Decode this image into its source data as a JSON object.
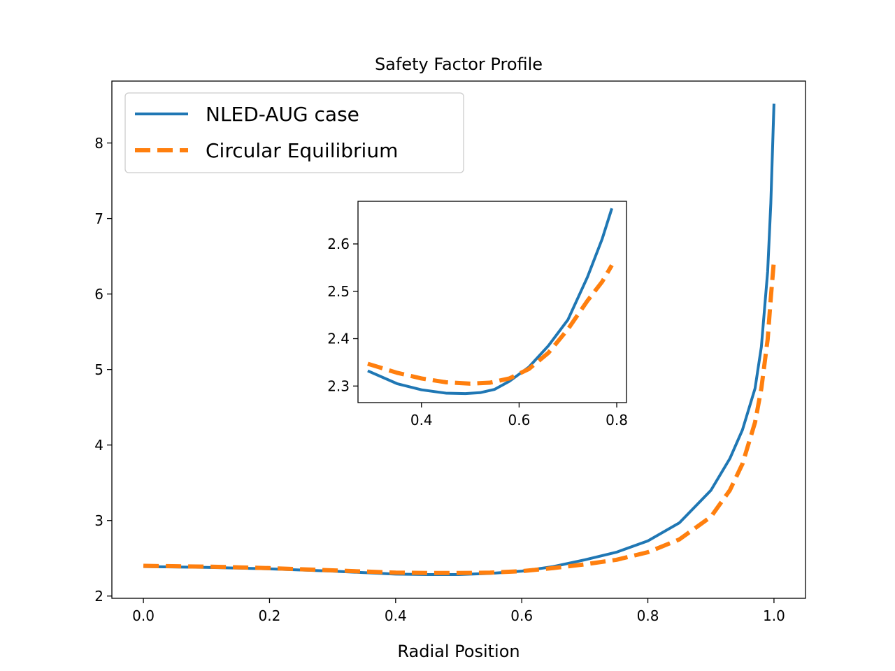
{
  "chart_data": [
    {
      "type": "line",
      "title": "Safety Factor Profile",
      "xlabel": "Radial Position",
      "ylabel": "",
      "xlim": [
        -0.05,
        1.05
      ],
      "ylim": [
        1.97,
        8.82
      ],
      "xticks": [
        0.0,
        0.2,
        0.4,
        0.6,
        0.8,
        1.0
      ],
      "xtick_labels": [
        "0.0",
        "0.2",
        "0.4",
        "0.6",
        "0.8",
        "1.0"
      ],
      "yticks": [
        2,
        3,
        4,
        5,
        6,
        7,
        8
      ],
      "ytick_labels": [
        "2",
        "3",
        "4",
        "5",
        "6",
        "7",
        "8"
      ],
      "grid": false,
      "legend_position": "top-left",
      "series": [
        {
          "name": "NLED-AUG case",
          "color": "#1f77b4",
          "style": "solid",
          "x": [
            0.0,
            0.1,
            0.2,
            0.3,
            0.4,
            0.45,
            0.5,
            0.55,
            0.6,
            0.65,
            0.7,
            0.75,
            0.8,
            0.85,
            0.9,
            0.93,
            0.95,
            0.97,
            0.98,
            0.99,
            0.995,
            1.0
          ],
          "y": [
            2.39,
            2.38,
            2.36,
            2.33,
            2.29,
            2.285,
            2.285,
            2.3,
            2.33,
            2.39,
            2.48,
            2.58,
            2.73,
            2.97,
            3.4,
            3.82,
            4.2,
            4.75,
            5.3,
            6.3,
            7.2,
            8.52
          ]
        },
        {
          "name": "Circular Equilibrium",
          "color": "#ff7f0e",
          "style": "dashed",
          "x": [
            0.0,
            0.1,
            0.2,
            0.3,
            0.4,
            0.45,
            0.5,
            0.55,
            0.6,
            0.65,
            0.7,
            0.75,
            0.8,
            0.85,
            0.9,
            0.93,
            0.95,
            0.97,
            0.98,
            0.99,
            0.995,
            1.0
          ],
          "y": [
            2.4,
            2.39,
            2.37,
            2.34,
            2.31,
            2.305,
            2.305,
            2.31,
            2.33,
            2.37,
            2.42,
            2.48,
            2.58,
            2.75,
            3.05,
            3.4,
            3.75,
            4.3,
            4.75,
            5.4,
            5.95,
            6.45
          ]
        }
      ]
    },
    {
      "type": "line",
      "title": "",
      "xlabel": "",
      "ylabel": "",
      "xlim": [
        0.27,
        0.82
      ],
      "ylim": [
        2.265,
        2.69
      ],
      "xticks": [
        0.4,
        0.6,
        0.8
      ],
      "xtick_labels": [
        "0.4",
        "0.6",
        "0.8"
      ],
      "yticks": [
        2.3,
        2.4,
        2.5,
        2.6
      ],
      "ytick_labels": [
        "2.3",
        "2.4",
        "2.5",
        "2.6"
      ],
      "grid": false,
      "series": [
        {
          "name": "NLED-AUG case",
          "color": "#1f77b4",
          "style": "solid",
          "x": [
            0.29,
            0.35,
            0.4,
            0.45,
            0.49,
            0.52,
            0.55,
            0.58,
            0.62,
            0.66,
            0.7,
            0.74,
            0.77,
            0.79
          ],
          "y": [
            2.332,
            2.305,
            2.292,
            2.285,
            2.284,
            2.286,
            2.293,
            2.31,
            2.34,
            2.385,
            2.44,
            2.53,
            2.61,
            2.675
          ]
        },
        {
          "name": "Circular Equilibrium",
          "color": "#ff7f0e",
          "style": "dashed",
          "x": [
            0.29,
            0.35,
            0.4,
            0.45,
            0.5,
            0.54,
            0.58,
            0.62,
            0.66,
            0.7,
            0.74,
            0.77,
            0.79
          ],
          "y": [
            2.347,
            2.328,
            2.316,
            2.308,
            2.305,
            2.307,
            2.316,
            2.336,
            2.37,
            2.42,
            2.48,
            2.52,
            2.555
          ]
        }
      ]
    }
  ]
}
